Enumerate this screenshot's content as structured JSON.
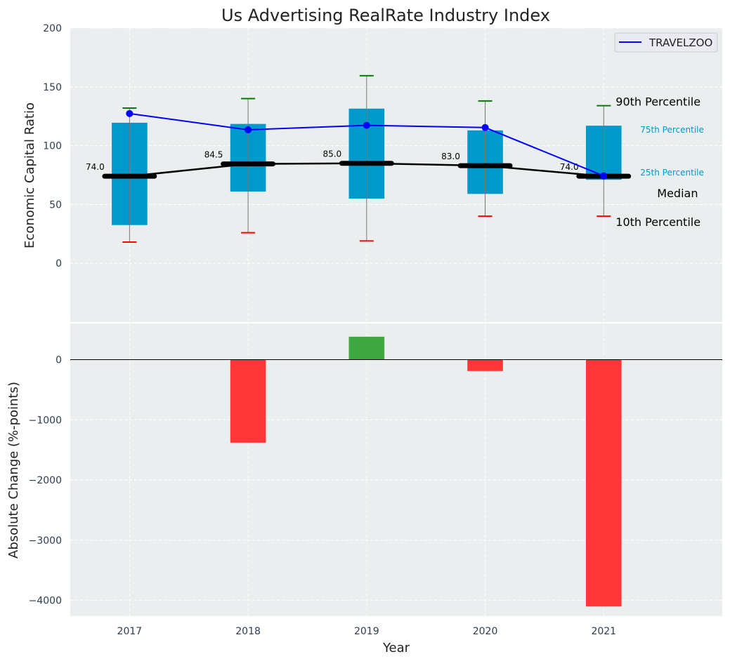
{
  "chart_data": {
    "type": "box",
    "title": "Us Advertising RealRate Industry Index",
    "xlabel": "Year",
    "categories": [
      "2017",
      "2018",
      "2019",
      "2020",
      "2021"
    ],
    "top_panel": {
      "ylabel": "Economic Capital Ratio",
      "ylim": [
        -50,
        200
      ],
      "yticks": [
        0,
        50,
        100,
        150,
        200
      ],
      "p10": [
        18,
        26,
        19,
        40,
        40
      ],
      "q1": [
        32.5,
        61,
        55,
        59,
        71
      ],
      "median": [
        74.0,
        84.5,
        85.0,
        83.0,
        74.0
      ],
      "median_labels": [
        "74.0",
        "84.5",
        "85.0",
        "83.0",
        "74.0"
      ],
      "q3": [
        119.5,
        118.5,
        131.5,
        113,
        117
      ],
      "p90": [
        132,
        140,
        159.5,
        138,
        134
      ],
      "series": [
        {
          "name": "TRAVELZOO",
          "values": [
            127.3,
            113.5,
            117.3,
            115.4,
            74.3
          ],
          "color": "#0000ff"
        }
      ],
      "annotations": {
        "p90": "90th Percentile",
        "q3": "75th Percentile",
        "q1": "25th Percentile",
        "median": "Median",
        "p10": "10th Percentile"
      },
      "legend": "top-right"
    },
    "bottom_panel": {
      "ylabel": "Absolute Change (%-points)",
      "ylim": [
        -4260,
        600
      ],
      "yticks": [
        0,
        -1000,
        -2000,
        -3000,
        -4000
      ],
      "ytick_labels": [
        "0",
        "−1000",
        "−2000",
        "−3000",
        "−4000"
      ],
      "values": [
        0,
        -1380,
        380,
        -190,
        -4100
      ]
    },
    "colors": {
      "box": "#0099cc",
      "positive": "#2ca02c",
      "negative": "#ff2222",
      "bg": "#eaeeef"
    }
  }
}
